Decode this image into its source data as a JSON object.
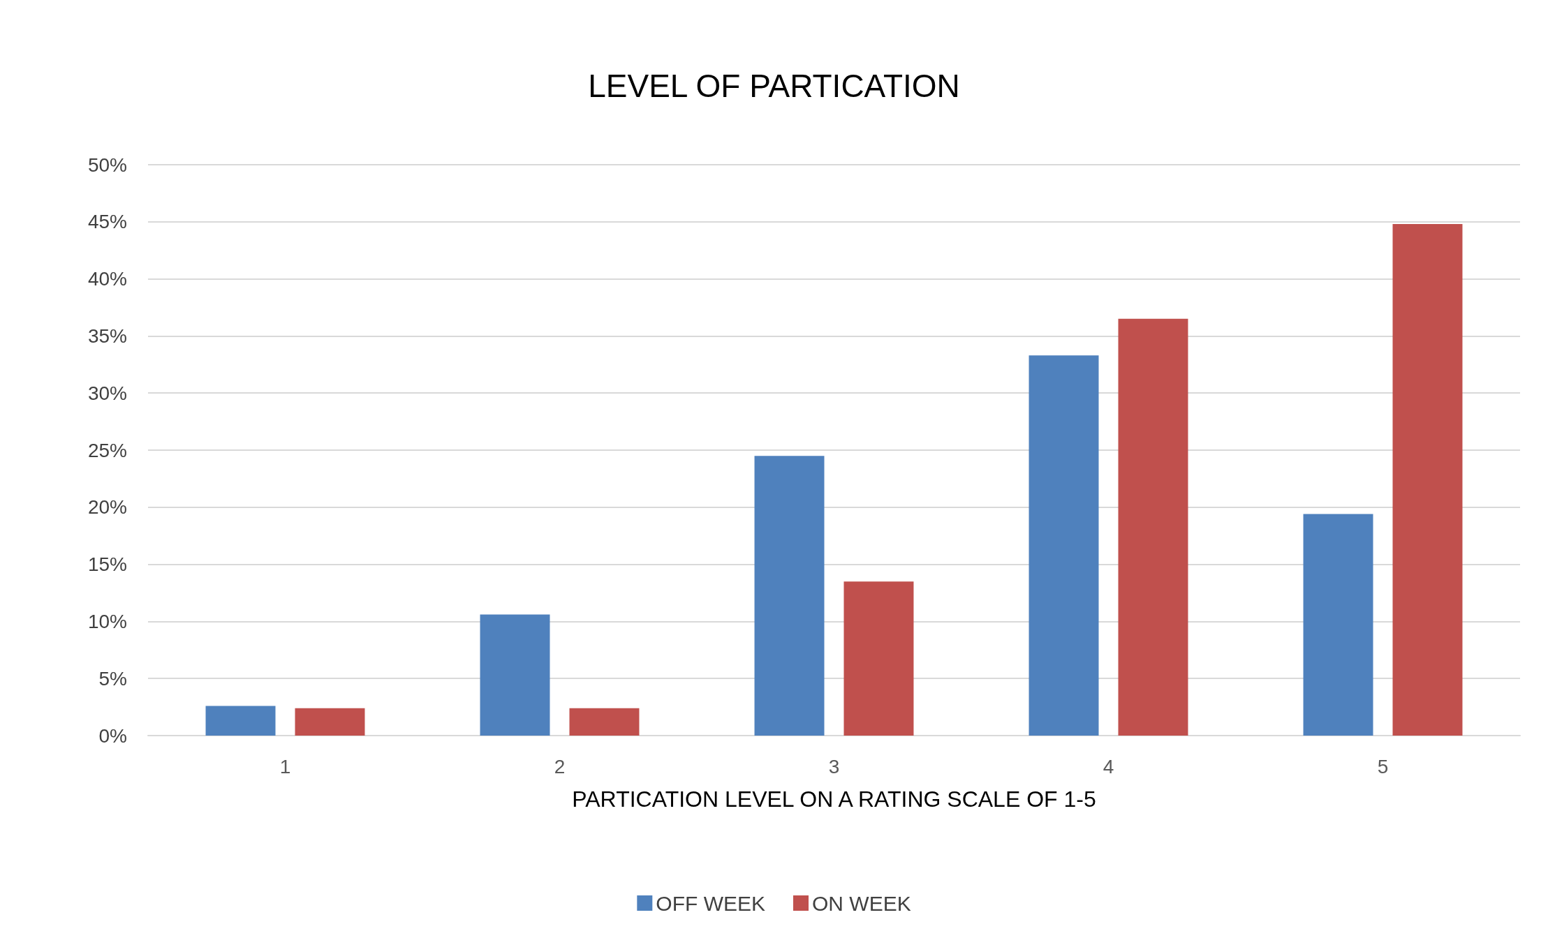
{
  "chart_data": {
    "type": "bar",
    "title": "LEVEL OF PARTICATION",
    "xlabel": "PARTICATION LEVEL ON A RATING SCALE OF 1-5",
    "categories": [
      "1",
      "2",
      "3",
      "4",
      "5"
    ],
    "series": [
      {
        "name": "OFF WEEK",
        "color": "#4f81bd",
        "values": [
          2.6,
          10.6,
          24.5,
          33.3,
          19.4
        ]
      },
      {
        "name": "ON WEEK",
        "color": "#c0504d",
        "values": [
          2.4,
          2.4,
          13.5,
          36.5,
          44.8
        ]
      }
    ],
    "ylim": [
      0,
      50
    ],
    "yticks": [
      {
        "value": 0,
        "label": "0%"
      },
      {
        "value": 5,
        "label": "5%"
      },
      {
        "value": 10,
        "label": "10%"
      },
      {
        "value": 15,
        "label": "15%"
      },
      {
        "value": 20,
        "label": "20%"
      },
      {
        "value": 25,
        "label": "25%"
      },
      {
        "value": 30,
        "label": "30%"
      },
      {
        "value": 35,
        "label": "35%"
      },
      {
        "value": 40,
        "label": "40%"
      },
      {
        "value": 45,
        "label": "45%"
      },
      {
        "value": 50,
        "label": "50%"
      }
    ],
    "grid": "y",
    "legend": "bottom"
  }
}
